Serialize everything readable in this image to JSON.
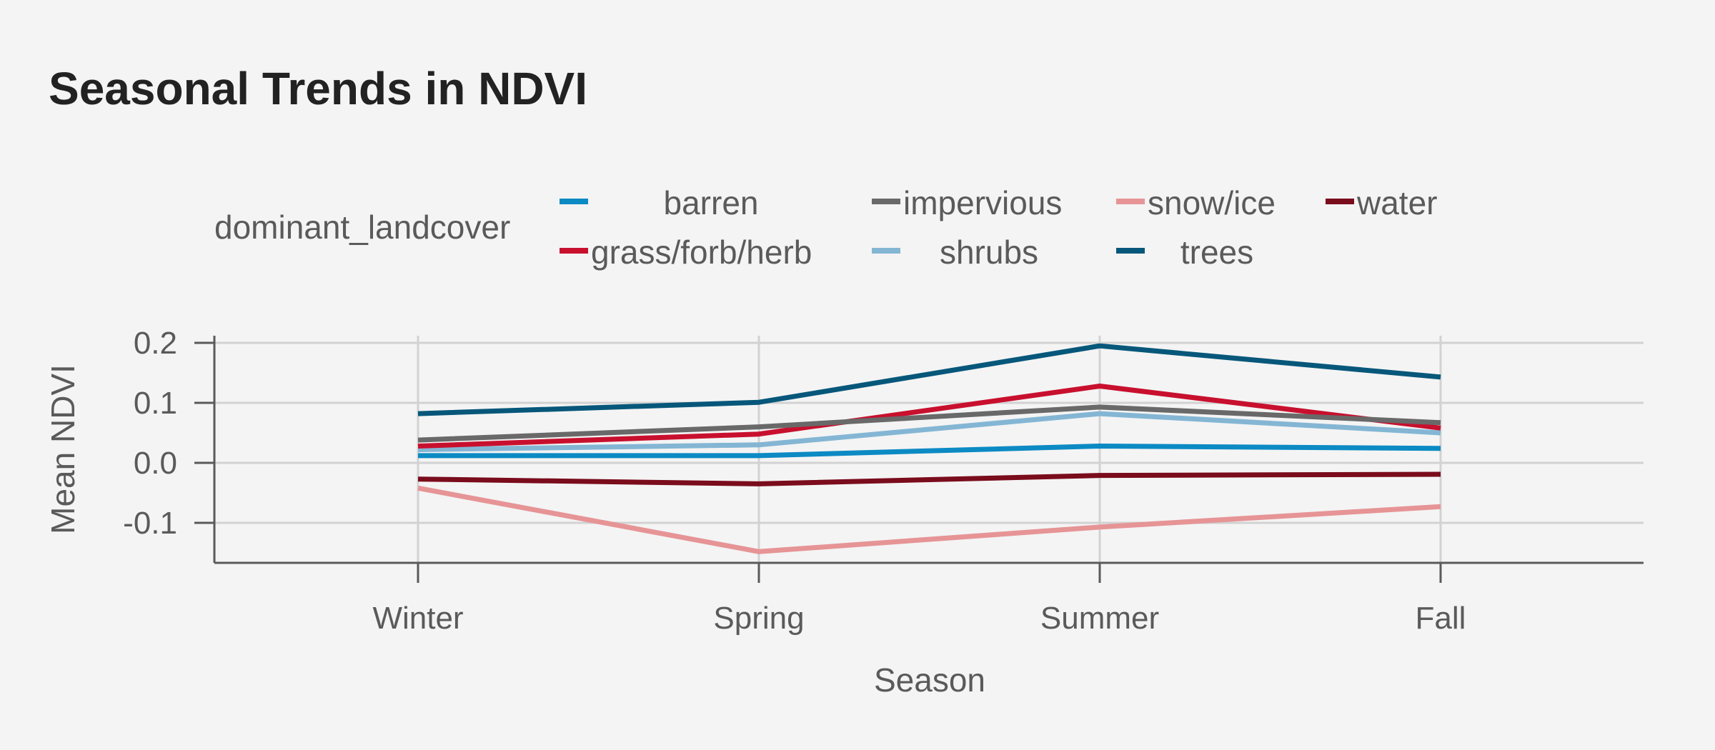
{
  "chart_data": {
    "type": "line",
    "title": "Seasonal Trends in NDVI",
    "xlabel": "Season",
    "ylabel": "Mean NDVI",
    "categories": [
      "Winter",
      "Spring",
      "Summer",
      "Fall"
    ],
    "ylim": [
      -0.17,
      0.21
    ],
    "yticks": [
      0.2,
      0.1,
      0.0,
      -0.1
    ],
    "ytick_labels": [
      "0.2",
      "0.1",
      "0.0",
      "-0.1"
    ],
    "grid": true,
    "legend": {
      "title": "dominant_landcover",
      "placement": "top",
      "entries": [
        "barren",
        "grass/forb/herb",
        "impervious",
        "shrubs",
        "snow/ice",
        "trees",
        "water"
      ]
    },
    "series": [
      {
        "name": "barren",
        "color": "#0c8ac4",
        "values": [
          0.012,
          0.012,
          0.028,
          0.024
        ]
      },
      {
        "name": "grass/forb/herb",
        "color": "#c8102e",
        "values": [
          0.028,
          0.048,
          0.128,
          0.058
        ]
      },
      {
        "name": "impervious",
        "color": "#696969",
        "values": [
          0.038,
          0.06,
          0.093,
          0.067
        ]
      },
      {
        "name": "shrubs",
        "color": "#84b6d4",
        "values": [
          0.022,
          0.03,
          0.082,
          0.05
        ]
      },
      {
        "name": "snow/ice",
        "color": "#e69496",
        "values": [
          -0.042,
          -0.148,
          -0.107,
          -0.073
        ]
      },
      {
        "name": "trees",
        "color": "#06577a",
        "values": [
          0.082,
          0.101,
          0.195,
          0.143
        ]
      },
      {
        "name": "water",
        "color": "#7a0c1c",
        "values": [
          -0.027,
          -0.035,
          -0.021,
          -0.019
        ]
      }
    ]
  }
}
